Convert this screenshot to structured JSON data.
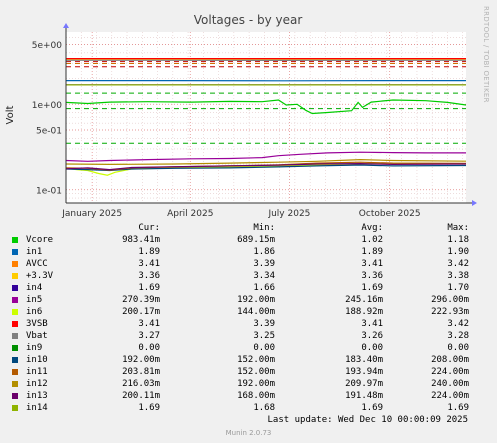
{
  "side_credit": "RRDTOOL / TOBI OETIKER",
  "legend_headers": {
    "cur": "Cur:",
    "min": "Min:",
    "avg": "Avg:",
    "max": "Max:"
  },
  "last_update": "Last update: Wed Dec 10 00:00:09 2025",
  "footer": "Munin 2.0.73",
  "chart_data": {
    "type": "line",
    "title": "Voltages - by year",
    "ylabel": "Volt",
    "yscale": "log",
    "ylim": [
      0.07,
      7
    ],
    "y_ticks": [
      {
        "value": 5,
        "label": "5e+00"
      },
      {
        "value": 1,
        "label": "1e+00"
      },
      {
        "value": 0.5,
        "label": "5e-01"
      },
      {
        "value": 0.1,
        "label": "1e-01"
      }
    ],
    "x_ticks": [
      "January 2025",
      "April 2025",
      "July 2025",
      "October 2025"
    ],
    "x_tick_dates": [
      "2025-01-01",
      "2025-04-01",
      "2025-07-01",
      "2025-10-01"
    ],
    "xlim": [
      "2024-12-08",
      "2025-12-10"
    ],
    "grid": true,
    "threshold_lines": [
      {
        "value": 3.15,
        "color": "#c00000"
      },
      {
        "value": 3.0,
        "color": "#d07000"
      },
      {
        "value": 2.75,
        "color": "#c00000"
      },
      {
        "value": 1.35,
        "color": "#00aa00"
      },
      {
        "value": 0.89,
        "color": "#00aa00"
      },
      {
        "value": 0.35,
        "color": "#00aa00"
      }
    ],
    "series": [
      {
        "name": "Vcore",
        "color": "#00cc00",
        "cur": "983.41m",
        "min": "689.15m",
        "avg": "1.02",
        "max": "1.18",
        "points": [
          [
            0,
            1.05
          ],
          [
            20,
            1.02
          ],
          [
            40,
            1.06
          ],
          [
            75,
            1.07
          ],
          [
            115,
            1.06
          ],
          [
            150,
            1.08
          ],
          [
            180,
            1.07
          ],
          [
            195,
            1.12
          ],
          [
            202,
            0.98
          ],
          [
            212,
            1.0
          ],
          [
            220,
            0.85
          ],
          [
            226,
            0.78
          ],
          [
            240,
            0.8
          ],
          [
            262,
            0.84
          ],
          [
            268,
            1.05
          ],
          [
            272,
            0.92
          ],
          [
            280,
            1.06
          ],
          [
            300,
            1.12
          ],
          [
            330,
            1.1
          ],
          [
            350,
            1.05
          ],
          [
            367,
            0.98
          ]
        ]
      },
      {
        "name": "in1",
        "color": "#0066b3",
        "cur": "1.89",
        "min": "1.86",
        "avg": "1.89",
        "max": "1.90",
        "points": [
          [
            0,
            1.89
          ],
          [
            100,
            1.89
          ],
          [
            200,
            1.88
          ],
          [
            300,
            1.89
          ],
          [
            367,
            1.89
          ]
        ]
      },
      {
        "name": "AVCC",
        "color": "#ff8000",
        "cur": "3.41",
        "min": "3.39",
        "avg": "3.41",
        "max": "3.42",
        "points": [
          [
            0,
            3.41
          ],
          [
            100,
            3.41
          ],
          [
            200,
            3.41
          ],
          [
            300,
            3.41
          ],
          [
            367,
            3.41
          ]
        ]
      },
      {
        "name": "+3.3V",
        "color": "#ffcc00",
        "cur": "3.36",
        "min": "3.34",
        "avg": "3.36",
        "max": "3.38",
        "points": [
          [
            0,
            3.36
          ],
          [
            100,
            3.36
          ],
          [
            200,
            3.36
          ],
          [
            300,
            3.36
          ],
          [
            367,
            3.36
          ]
        ]
      },
      {
        "name": "in4",
        "color": "#330099",
        "cur": "1.69",
        "min": "1.66",
        "avg": "1.69",
        "max": "1.70",
        "points": [
          [
            0,
            1.69
          ],
          [
            100,
            1.69
          ],
          [
            200,
            1.69
          ],
          [
            300,
            1.69
          ],
          [
            367,
            1.69
          ]
        ]
      },
      {
        "name": "in5",
        "color": "#990099",
        "cur": "270.39m",
        "min": "192.00m",
        "avg": "245.16m",
        "max": "296.00m",
        "points": [
          [
            0,
            0.22
          ],
          [
            20,
            0.215
          ],
          [
            40,
            0.22
          ],
          [
            75,
            0.225
          ],
          [
            115,
            0.23
          ],
          [
            150,
            0.232
          ],
          [
            180,
            0.238
          ],
          [
            195,
            0.25
          ],
          [
            215,
            0.26
          ],
          [
            240,
            0.27
          ],
          [
            270,
            0.275
          ],
          [
            300,
            0.272
          ],
          [
            330,
            0.27
          ],
          [
            367,
            0.27
          ]
        ]
      },
      {
        "name": "in6",
        "color": "#ccff00",
        "cur": "200.17m",
        "min": "144.00m",
        "avg": "188.92m",
        "max": "222.93m",
        "points": [
          [
            0,
            0.178
          ],
          [
            10,
            0.172
          ],
          [
            20,
            0.168
          ],
          [
            30,
            0.155
          ],
          [
            38,
            0.148
          ],
          [
            45,
            0.16
          ],
          [
            60,
            0.175
          ],
          [
            100,
            0.18
          ],
          [
            150,
            0.185
          ],
          [
            195,
            0.19
          ],
          [
            230,
            0.195
          ],
          [
            260,
            0.2
          ],
          [
            300,
            0.205
          ],
          [
            367,
            0.2
          ]
        ]
      },
      {
        "name": "3VSB",
        "color": "#ff0000",
        "cur": "3.41",
        "min": "3.39",
        "avg": "3.41",
        "max": "3.42",
        "points": [
          [
            0,
            3.42
          ],
          [
            100,
            3.42
          ],
          [
            200,
            3.42
          ],
          [
            300,
            3.42
          ],
          [
            367,
            3.42
          ]
        ]
      },
      {
        "name": "Vbat",
        "color": "#808080",
        "cur": "3.27",
        "min": "3.25",
        "avg": "3.26",
        "max": "3.28",
        "points": [
          [
            0,
            3.27
          ],
          [
            100,
            3.27
          ],
          [
            200,
            3.26
          ],
          [
            300,
            3.27
          ],
          [
            367,
            3.27
          ]
        ]
      },
      {
        "name": "in9",
        "color": "#008f00",
        "cur": "0.00",
        "min": "0.00",
        "avg": "0.00",
        "max": "0.00",
        "points": []
      },
      {
        "name": "in10",
        "color": "#00487d",
        "cur": "192.00m",
        "min": "152.00m",
        "avg": "183.40m",
        "max": "208.00m",
        "points": [
          [
            0,
            0.175
          ],
          [
            20,
            0.172
          ],
          [
            40,
            0.168
          ],
          [
            60,
            0.175
          ],
          [
            100,
            0.178
          ],
          [
            150,
            0.18
          ],
          [
            195,
            0.185
          ],
          [
            230,
            0.19
          ],
          [
            270,
            0.195
          ],
          [
            300,
            0.19
          ],
          [
            367,
            0.192
          ]
        ]
      },
      {
        "name": "in11",
        "color": "#b35a00",
        "cur": "203.81m",
        "min": "152.00m",
        "avg": "193.94m",
        "max": "224.00m",
        "points": [
          [
            0,
            0.18
          ],
          [
            20,
            0.178
          ],
          [
            40,
            0.17
          ],
          [
            60,
            0.18
          ],
          [
            100,
            0.185
          ],
          [
            150,
            0.19
          ],
          [
            195,
            0.196
          ],
          [
            230,
            0.205
          ],
          [
            270,
            0.21
          ],
          [
            300,
            0.205
          ],
          [
            367,
            0.204
          ]
        ]
      },
      {
        "name": "in12",
        "color": "#b38f00",
        "cur": "216.03m",
        "min": "192.00m",
        "avg": "209.97m",
        "max": "240.00m",
        "points": [
          [
            0,
            0.2
          ],
          [
            40,
            0.198
          ],
          [
            100,
            0.2
          ],
          [
            150,
            0.205
          ],
          [
            195,
            0.21
          ],
          [
            230,
            0.215
          ],
          [
            270,
            0.225
          ],
          [
            300,
            0.22
          ],
          [
            367,
            0.216
          ]
        ]
      },
      {
        "name": "in13",
        "color": "#6b006b",
        "cur": "200.11m",
        "min": "168.00m",
        "avg": "191.48m",
        "max": "224.00m",
        "points": [
          [
            0,
            0.176
          ],
          [
            20,
            0.18
          ],
          [
            40,
            0.172
          ],
          [
            60,
            0.182
          ],
          [
            100,
            0.186
          ],
          [
            150,
            0.19
          ],
          [
            195,
            0.194
          ],
          [
            230,
            0.2
          ],
          [
            270,
            0.202
          ],
          [
            300,
            0.198
          ],
          [
            367,
            0.2
          ]
        ]
      },
      {
        "name": "in14",
        "color": "#8fb300",
        "cur": "1.69",
        "min": "1.68",
        "avg": "1.69",
        "max": "1.69",
        "points": [
          [
            0,
            1.685
          ],
          [
            100,
            1.685
          ],
          [
            200,
            1.685
          ],
          [
            300,
            1.685
          ],
          [
            367,
            1.685
          ]
        ]
      }
    ]
  }
}
